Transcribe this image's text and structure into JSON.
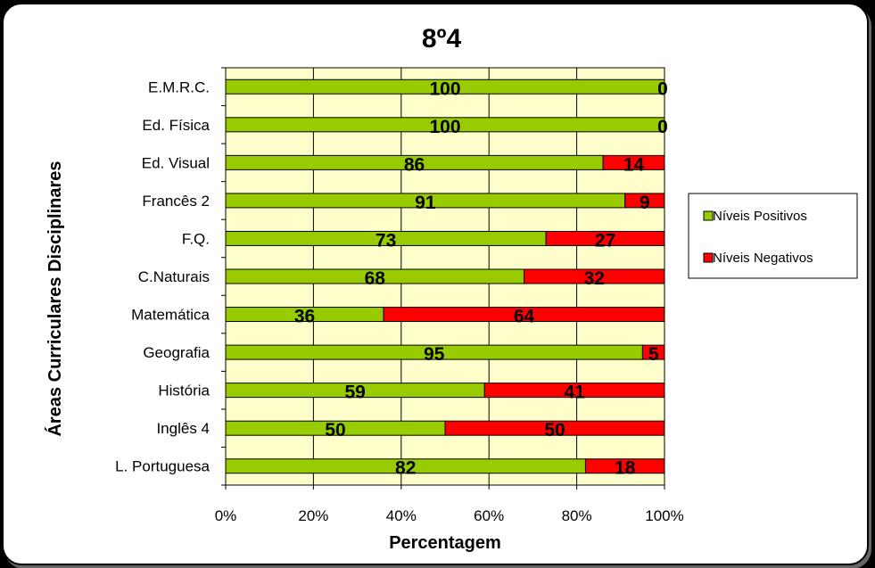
{
  "chart_data": {
    "type": "bar",
    "orientation": "horizontal",
    "stacked": true,
    "percent": true,
    "title": "8º4",
    "xlabel": "Percentagem",
    "ylabel": "Áreas Curriculares  Disciplinares",
    "categories": [
      "E.M.R.C.",
      "Ed. Física",
      "Ed. Visual",
      "Francês 2",
      "F.Q.",
      "C.Naturais",
      "Matemática",
      "Geografia",
      "História",
      "Inglês 4",
      "L. Portuguesa"
    ],
    "series": [
      {
        "name": "Níveis Positivos",
        "color": "#99CC00",
        "values": [
          100,
          100,
          86,
          91,
          73,
          68,
          36,
          95,
          59,
          50,
          82
        ]
      },
      {
        "name": "Níveis Negativos",
        "color": "#FF0000",
        "values": [
          0,
          0,
          14,
          9,
          27,
          32,
          64,
          5,
          41,
          50,
          18
        ]
      }
    ],
    "xlim": [
      0,
      100
    ],
    "xticks": [
      "0%",
      "20%",
      "40%",
      "60%",
      "80%",
      "100%"
    ],
    "grid": true,
    "legend_position": "right",
    "plot_background": "#FFFFCC"
  }
}
